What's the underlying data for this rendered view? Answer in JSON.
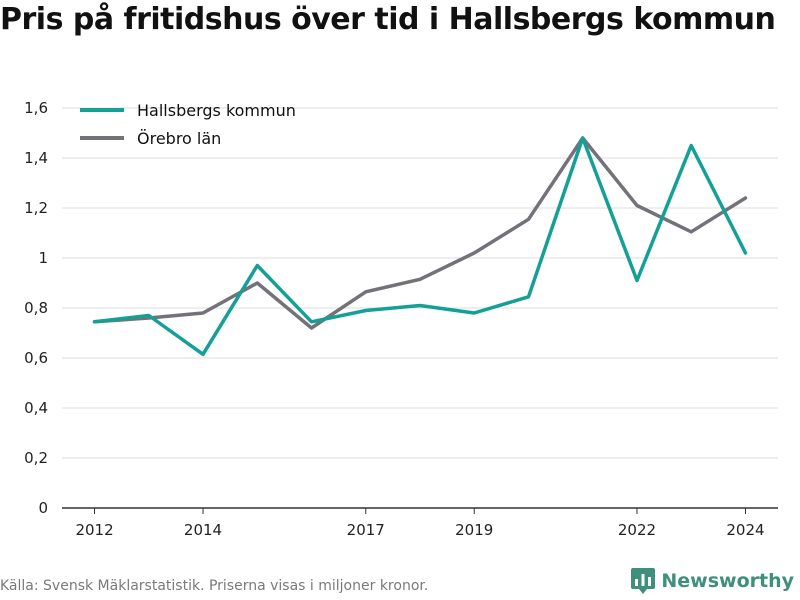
{
  "title": "Pris på fritidshus över tid i Hallsbergs kommun",
  "footer": {
    "source": "Källa: Svensk Mäklarstatistik. Priserna visas i miljoner kronor."
  },
  "brand": {
    "name": "Newsworthy",
    "icon": "newsworthy-logo-icon",
    "color": "#3f8f7d"
  },
  "chart_data": {
    "type": "line",
    "title": "Pris på fritidshus över tid i Hallsbergs kommun",
    "xlabel": "",
    "ylabel": "",
    "x": [
      2012,
      2013,
      2014,
      2015,
      2016,
      2017,
      2018,
      2019,
      2020,
      2021,
      2022,
      2023,
      2024
    ],
    "xlim": [
      2011.4,
      2024.6
    ],
    "ylim": [
      0,
      1.6
    ],
    "x_ticks": [
      2012,
      2014,
      2017,
      2019,
      2022,
      2024
    ],
    "x_tick_labels": [
      "2012",
      "2014",
      "2017",
      "2019",
      "2022",
      "2024"
    ],
    "y_ticks": [
      0,
      0.2,
      0.4,
      0.6,
      0.8,
      1,
      1.2,
      1.4,
      1.6
    ],
    "y_tick_labels": [
      "0",
      "0,2",
      "0,4",
      "0,6",
      "0,8",
      "1",
      "1,2",
      "1,4",
      "1,6"
    ],
    "grid": "horizontal",
    "legend_position": "top-left",
    "series": [
      {
        "name": "Hallsbergs kommun",
        "color": "#14a096",
        "values": [
          0.745,
          0.77,
          0.615,
          0.97,
          0.745,
          0.79,
          0.81,
          0.78,
          0.845,
          1.48,
          0.91,
          1.45,
          1.02
        ]
      },
      {
        "name": "Örebro län",
        "color": "#737278",
        "values": [
          0.745,
          0.76,
          0.78,
          0.9,
          0.72,
          0.865,
          0.915,
          1.02,
          1.155,
          1.48,
          1.21,
          1.105,
          1.24
        ]
      }
    ]
  }
}
